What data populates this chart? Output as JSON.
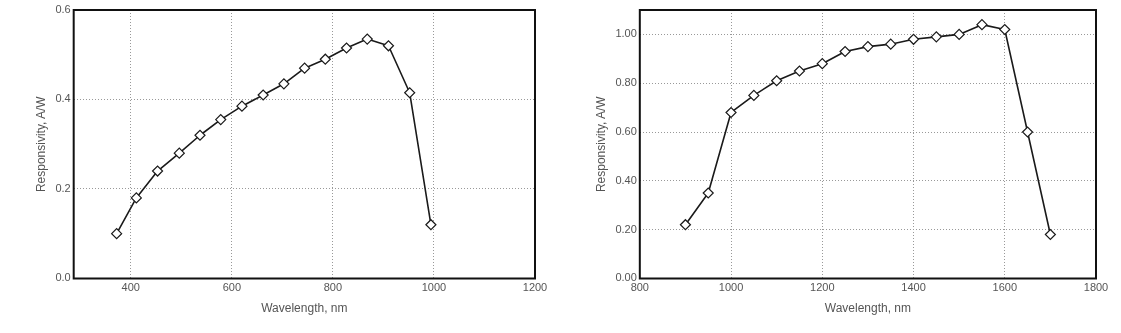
{
  "chart_data": [
    {
      "type": "line",
      "xlabel": "Wavelength, nm",
      "ylabel": "Responsivity, A/W",
      "color": "#1a1a1a",
      "marker": "diamond",
      "grid": true,
      "x": [
        372,
        411,
        453,
        496,
        537,
        578,
        620,
        662,
        703,
        744,
        785,
        827,
        868,
        910,
        952,
        994
      ],
      "values": [
        0.1,
        0.18,
        0.24,
        0.28,
        0.32,
        0.355,
        0.385,
        0.41,
        0.435,
        0.47,
        0.49,
        0.515,
        0.535,
        0.52,
        0.415,
        0.12
      ],
      "xlim": [
        287,
        1200
      ],
      "ylim": [
        0,
        0.6
      ],
      "xticks": [
        400,
        600,
        800,
        1000,
        1200
      ],
      "yticks": [
        {
          "value": 0,
          "label": "0.0"
        },
        {
          "value": 0.2,
          "label": "0.2"
        },
        {
          "value": 0.4,
          "label": "0.4"
        },
        {
          "value": 0.6,
          "label": "0.6"
        }
      ]
    },
    {
      "type": "line",
      "xlabel": "Wavelength, nm",
      "ylabel": "Responsivity, A/W",
      "color": "#1a1a1a",
      "marker": "diamond",
      "grid": true,
      "x": [
        900,
        950,
        1000,
        1050,
        1100,
        1150,
        1200,
        1250,
        1300,
        1350,
        1400,
        1450,
        1500,
        1550,
        1600,
        1650,
        1700
      ],
      "values": [
        0.22,
        0.35,
        0.68,
        0.75,
        0.81,
        0.85,
        0.88,
        0.93,
        0.95,
        0.96,
        0.98,
        0.99,
        1.0,
        1.04,
        1.02,
        0.6,
        0.18
      ],
      "xlim": [
        800,
        1800
      ],
      "ylim": [
        0,
        1.1
      ],
      "xticks": [
        800,
        1000,
        1200,
        1400,
        1600,
        1800
      ],
      "yticks": [
        {
          "value": 0,
          "label": "0.00"
        },
        {
          "value": 0.2,
          "label": "0.20"
        },
        {
          "value": 0.4,
          "label": "0.40"
        },
        {
          "value": 0.6,
          "label": "0.60"
        },
        {
          "value": 0.8,
          "label": "0.80"
        },
        {
          "value": 1,
          "label": "1.00"
        }
      ]
    }
  ]
}
